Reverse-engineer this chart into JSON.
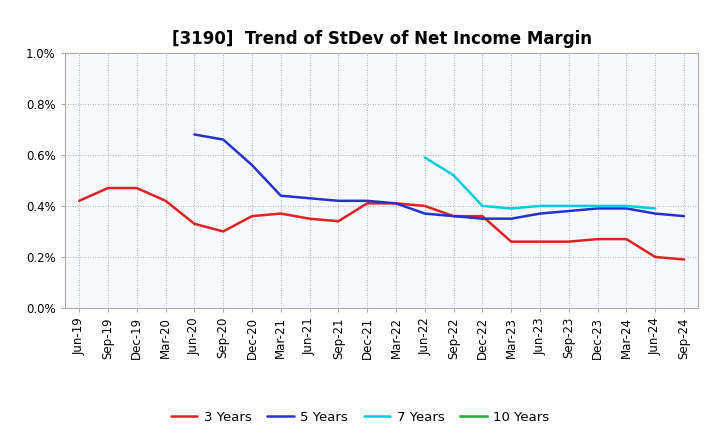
{
  "title": "[3190]  Trend of StDev of Net Income Margin",
  "xlabels": [
    "Jun-19",
    "Sep-19",
    "Dec-19",
    "Mar-20",
    "Jun-20",
    "Sep-20",
    "Dec-20",
    "Mar-21",
    "Jun-21",
    "Sep-21",
    "Dec-21",
    "Mar-22",
    "Jun-22",
    "Sep-22",
    "Dec-22",
    "Mar-23",
    "Jun-23",
    "Sep-23",
    "Dec-23",
    "Mar-24",
    "Jun-24",
    "Sep-24"
  ],
  "ylim": [
    0.0,
    0.01
  ],
  "yticks": [
    0.0,
    0.002,
    0.004,
    0.006,
    0.008,
    0.01
  ],
  "ytick_labels": [
    "0.0%",
    "0.2%",
    "0.4%",
    "0.6%",
    "0.8%",
    "1.0%"
  ],
  "series": {
    "3 Years": {
      "color": "#dd2222",
      "linewidth": 1.8,
      "values": [
        0.0042,
        0.0047,
        0.0047,
        0.0042,
        0.0033,
        0.003,
        0.0036,
        0.0037,
        0.0035,
        0.0034,
        0.0041,
        0.0041,
        0.004,
        0.0036,
        0.0036,
        0.0026,
        0.0026,
        0.0026,
        0.0027,
        0.0027,
        0.002,
        0.0019
      ]
    },
    "5 Years": {
      "color": "#2233cc",
      "linewidth": 1.8,
      "values": [
        null,
        null,
        null,
        null,
        0.0068,
        0.0066,
        0.0056,
        0.0044,
        0.0043,
        0.0042,
        0.0042,
        0.0041,
        0.0037,
        0.0036,
        0.0035,
        0.0035,
        0.0037,
        0.0038,
        0.0039,
        0.0039,
        0.0037,
        0.0036
      ]
    },
    "7 Years": {
      "color": "#00ccdd",
      "linewidth": 1.8,
      "values": [
        null,
        null,
        null,
        null,
        null,
        null,
        null,
        null,
        null,
        null,
        null,
        null,
        0.0059,
        0.0052,
        0.004,
        0.0039,
        0.004,
        0.004,
        0.004,
        0.004,
        0.0039,
        null
      ]
    },
    "10 Years": {
      "color": "#22aa33",
      "linewidth": 1.8,
      "values": [
        null,
        null,
        null,
        null,
        null,
        null,
        null,
        null,
        null,
        null,
        null,
        null,
        null,
        null,
        null,
        null,
        null,
        null,
        null,
        null,
        null,
        null
      ]
    }
  },
  "legend_order": [
    "3 Years",
    "5 Years",
    "7 Years",
    "10 Years"
  ],
  "background_color": "#ffffff",
  "plot_bg_color": "#f8f8ff",
  "grid_color": "#999999",
  "title_fontsize": 12,
  "label_fontsize": 8.5,
  "legend_fontsize": 9.5
}
